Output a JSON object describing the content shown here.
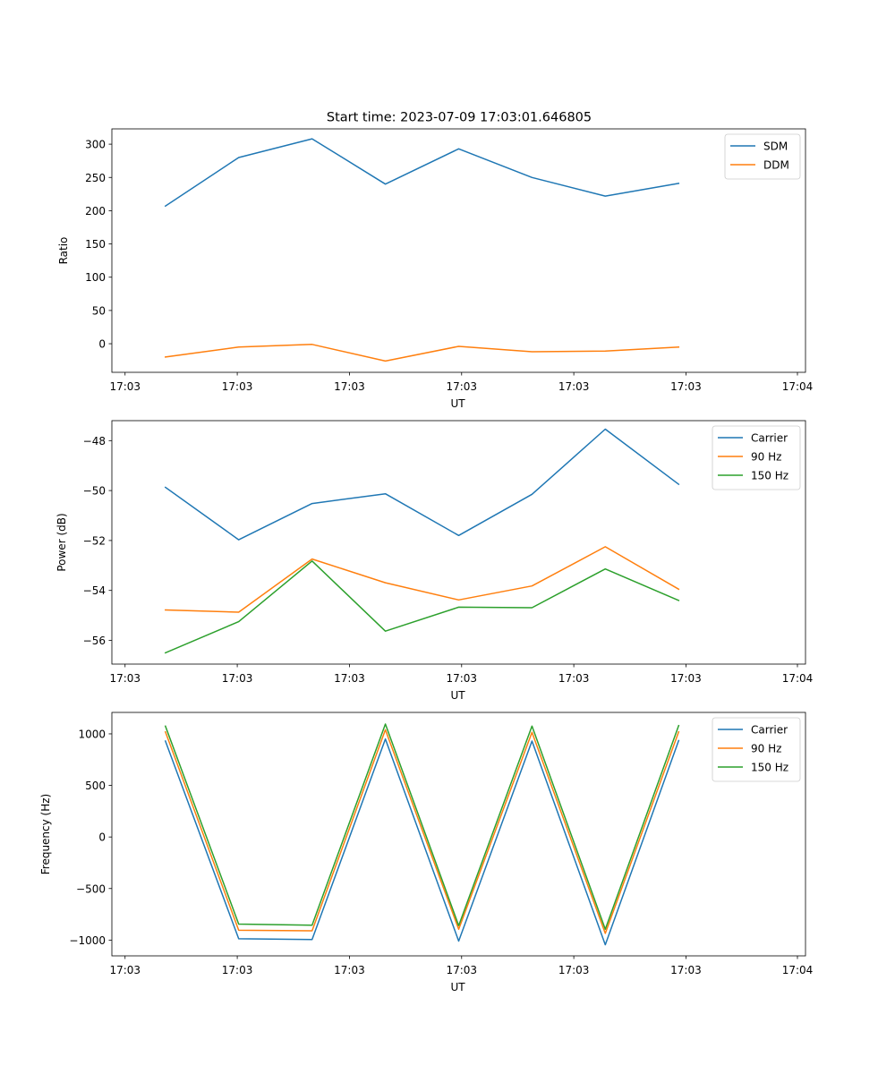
{
  "figure": {
    "title": "Start time: 2023-07-09 17:03:01.646805"
  },
  "colors": {
    "blue": "#1f77b4",
    "orange": "#ff7f0e",
    "green": "#2ca02c"
  },
  "chart_data": [
    {
      "type": "line",
      "title": "Start time: 2023-07-09 17:03:01.646805",
      "xlabel": "UT",
      "ylabel": "Ratio",
      "x": [
        1,
        2,
        3,
        4,
        5,
        6,
        7,
        8
      ],
      "xlim": [
        0.27,
        9.73
      ],
      "xticks": [
        0.45,
        1.98,
        3.51,
        5.04,
        6.57,
        8.1,
        9.62
      ],
      "xtick_labels": [
        "17:03",
        "17:03",
        "17:03",
        "17:03",
        "17:03",
        "17:03",
        "17:04"
      ],
      "ylim": [
        -43,
        323
      ],
      "yticks": [
        0,
        50,
        100,
        150,
        200,
        250,
        300
      ],
      "ytick_labels": [
        "0",
        "50",
        "100",
        "150",
        "200",
        "250",
        "300"
      ],
      "legend": "top-right",
      "series": [
        {
          "name": "SDM",
          "color": "#1f77b4",
          "values": [
            207,
            280,
            308,
            240,
            293,
            250,
            222,
            241
          ]
        },
        {
          "name": "DDM",
          "color": "#ff7f0e",
          "values": [
            -20,
            -5,
            -1,
            -26,
            -4,
            -12,
            -11,
            -5
          ]
        }
      ]
    },
    {
      "type": "line",
      "title": "",
      "xlabel": "UT",
      "ylabel": "Power (dB)",
      "x": [
        1,
        2,
        3,
        4,
        5,
        6,
        7,
        8
      ],
      "xlim": [
        0.27,
        9.73
      ],
      "xticks": [
        0.45,
        1.98,
        3.51,
        5.04,
        6.57,
        8.1,
        9.62
      ],
      "xtick_labels": [
        "17:03",
        "17:03",
        "17:03",
        "17:03",
        "17:03",
        "17:03",
        "17:04"
      ],
      "ylim": [
        -56.95,
        -47.2
      ],
      "yticks": [
        -56,
        -54,
        -52,
        -50,
        -48
      ],
      "ytick_labels": [
        "−56",
        "−54",
        "−52",
        "−50",
        "−48"
      ],
      "legend": "top-right",
      "series": [
        {
          "name": "Carrier",
          "color": "#1f77b4",
          "values": [
            -49.87,
            -51.97,
            -50.52,
            -50.13,
            -51.8,
            -50.15,
            -47.54,
            -49.75
          ]
        },
        {
          "name": "90 Hz",
          "color": "#ff7f0e",
          "values": [
            -54.78,
            -54.87,
            -52.74,
            -53.69,
            -54.38,
            -53.82,
            -52.25,
            -53.95
          ]
        },
        {
          "name": "150 Hz",
          "color": "#2ca02c",
          "values": [
            -56.5,
            -55.25,
            -52.82,
            -55.63,
            -54.67,
            -54.69,
            -53.14,
            -54.4
          ]
        }
      ]
    },
    {
      "type": "line",
      "title": "",
      "xlabel": "UT",
      "ylabel": "Frequency (Hz)",
      "x": [
        1,
        2,
        3,
        4,
        5,
        6,
        7,
        8
      ],
      "xlim": [
        0.27,
        9.73
      ],
      "xticks": [
        0.45,
        1.98,
        3.51,
        5.04,
        6.57,
        8.1,
        9.62
      ],
      "xtick_labels": [
        "17:03",
        "17:03",
        "17:03",
        "17:03",
        "17:03",
        "17:03",
        "17:04"
      ],
      "ylim": [
        -1153,
        1208
      ],
      "yticks": [
        -1000,
        -500,
        0,
        500,
        1000
      ],
      "ytick_labels": [
        "−1000",
        "−500",
        "0",
        "500",
        "1000"
      ],
      "legend": "top-right",
      "series": [
        {
          "name": "Carrier",
          "color": "#1f77b4",
          "values": [
            930,
            -987,
            -995,
            950,
            -1010,
            930,
            -1045,
            935
          ]
        },
        {
          "name": "90 Hz",
          "color": "#ff7f0e",
          "values": [
            1020,
            -905,
            -910,
            1040,
            -895,
            1015,
            -935,
            1020
          ]
        },
        {
          "name": "150 Hz",
          "color": "#2ca02c",
          "values": [
            1075,
            -845,
            -855,
            1095,
            -860,
            1075,
            -895,
            1080
          ]
        }
      ]
    }
  ]
}
